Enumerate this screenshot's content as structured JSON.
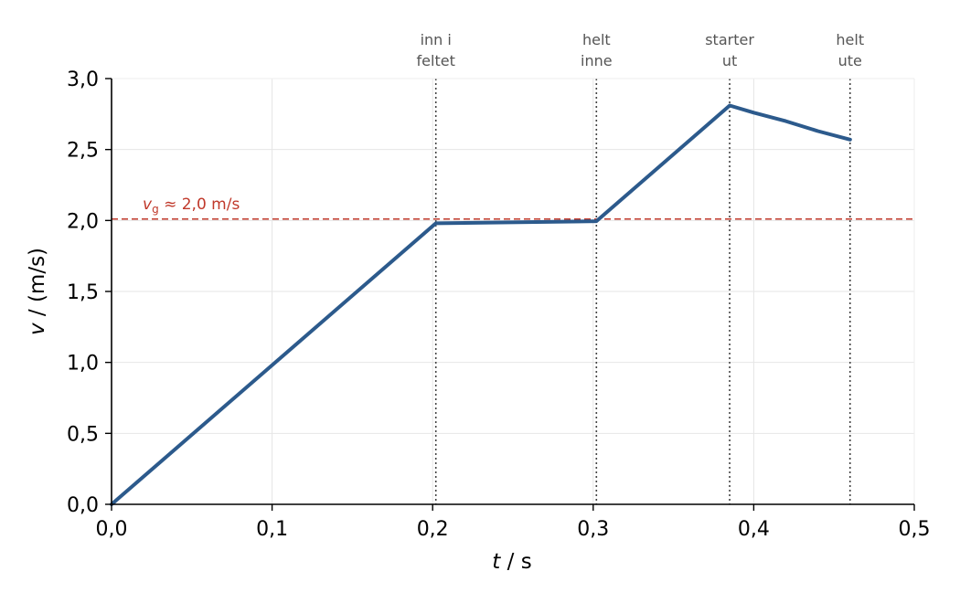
{
  "chart_data": {
    "type": "line",
    "xlabel": {
      "var": "t",
      "unit": " / s"
    },
    "ylabel": {
      "var": "v",
      "unit": " / (m/s)"
    },
    "xlim": [
      0,
      0.5
    ],
    "ylim": [
      0,
      3.0
    ],
    "xticks": [
      {
        "value": 0.0,
        "label": "0,0"
      },
      {
        "value": 0.1,
        "label": "0,1"
      },
      {
        "value": 0.2,
        "label": "0,2"
      },
      {
        "value": 0.3,
        "label": "0,3"
      },
      {
        "value": 0.4,
        "label": "0,4"
      },
      {
        "value": 0.5,
        "label": "0,5"
      }
    ],
    "yticks": [
      {
        "value": 0.0,
        "label": "0,0"
      },
      {
        "value": 0.5,
        "label": "0,5"
      },
      {
        "value": 1.0,
        "label": "1,0"
      },
      {
        "value": 1.5,
        "label": "1,5"
      },
      {
        "value": 2.0,
        "label": "2,0"
      },
      {
        "value": 2.5,
        "label": "2,5"
      },
      {
        "value": 3.0,
        "label": "3,0"
      }
    ],
    "grid": true,
    "series": [
      {
        "color": "#2c5a8c",
        "x": [
          0.0,
          0.202,
          0.302,
          0.385,
          0.4,
          0.42,
          0.44,
          0.46
        ],
        "y": [
          0.0,
          1.98,
          1.995,
          2.81,
          2.76,
          2.7,
          2.63,
          2.57
        ]
      }
    ],
    "reference_lines": [
      {
        "y": 2.01,
        "color": "#c0392b",
        "style": "dashed",
        "label": {
          "symbol": "v",
          "subscript": "g",
          "text": "≈ 2,0 m/s"
        }
      }
    ],
    "event_lines": [
      {
        "x": 0.202,
        "label": [
          "inn i",
          "feltet"
        ]
      },
      {
        "x": 0.302,
        "label": [
          "helt",
          "inne"
        ]
      },
      {
        "x": 0.385,
        "label": [
          "starter",
          "ut"
        ]
      },
      {
        "x": 0.46,
        "label": [
          "helt",
          "ute"
        ]
      }
    ]
  }
}
